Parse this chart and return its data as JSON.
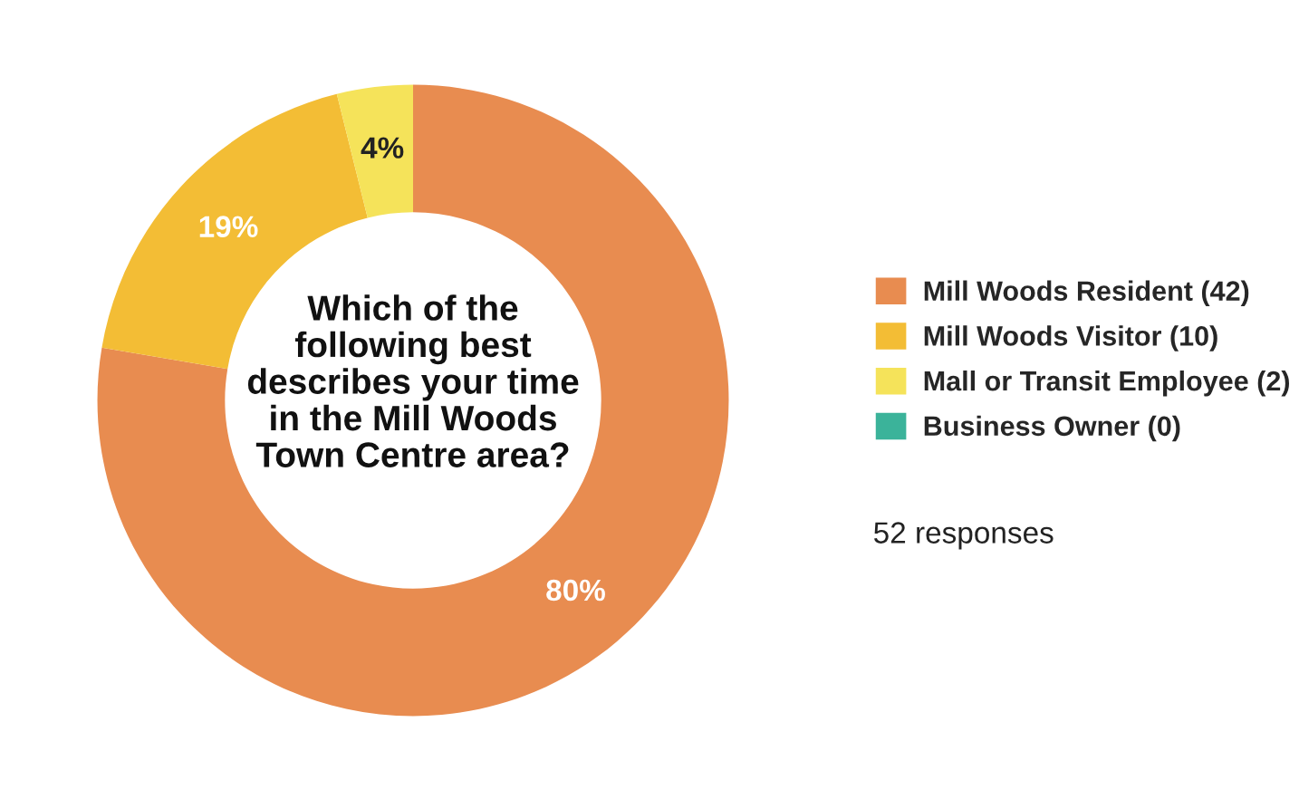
{
  "chart_data": {
    "type": "donut",
    "title": "Which of the following best describes your time in the Mill Woods Town Centre area?",
    "categories": [
      "Mill Woods Resident (42)",
      "Mill Woods Visitor (10)",
      "Mall or Transit Employee (2)",
      "Business Owner (0)"
    ],
    "values": [
      80,
      19,
      4,
      0
    ],
    "value_labels": [
      "80%",
      "19%",
      "4%",
      null
    ],
    "colors": [
      "#e88c50",
      "#f3bd35",
      "#f5e35a",
      "#3bb39a"
    ],
    "legend": "right",
    "annotations": [
      "52 responses"
    ]
  }
}
